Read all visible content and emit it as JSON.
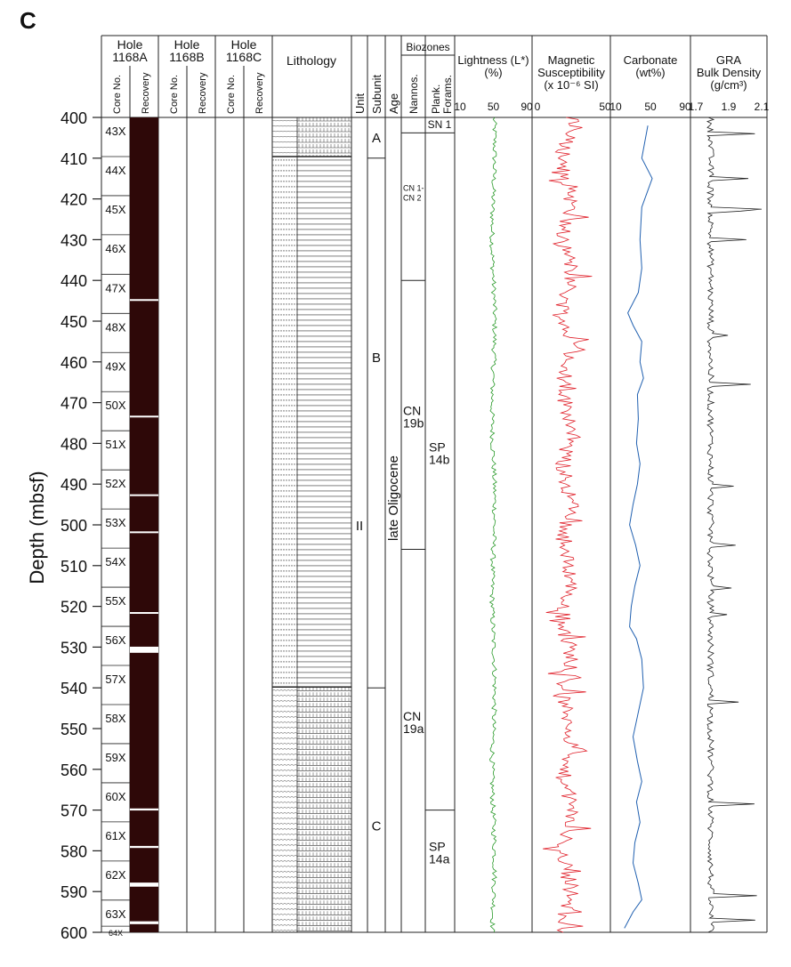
{
  "figure": {
    "panel_letter": "C"
  },
  "chart_data": {
    "type": "line",
    "title": "",
    "ylabel": "Depth (mbsf)",
    "ylim": [
      400,
      600
    ],
    "yticks": [
      "400",
      "410",
      "420",
      "430",
      "440",
      "450",
      "460",
      "470",
      "480",
      "490",
      "500",
      "510",
      "520",
      "530",
      "540",
      "550",
      "560",
      "570",
      "580",
      "590",
      "600"
    ],
    "holes": [
      {
        "name": "Hole 1168A",
        "line1": "Hole",
        "line2": "1168A"
      },
      {
        "name": "Hole 1168B",
        "line1": "Hole",
        "line2": "1168B"
      },
      {
        "name": "Hole 1168C",
        "line1": "Hole",
        "line2": "1168C"
      }
    ],
    "core_col_label": "Core No.",
    "recovery_col_label": "Recovery",
    "cores": [
      {
        "label": "43X",
        "top": 400.0,
        "bottom": 409.6
      },
      {
        "label": "44X",
        "top": 409.6,
        "bottom": 419.2
      },
      {
        "label": "45X",
        "top": 419.2,
        "bottom": 428.8
      },
      {
        "label": "46X",
        "top": 428.8,
        "bottom": 438.5
      },
      {
        "label": "47X",
        "top": 438.5,
        "bottom": 448.1
      },
      {
        "label": "48X",
        "top": 448.1,
        "bottom": 457.7
      },
      {
        "label": "49X",
        "top": 457.7,
        "bottom": 467.3
      },
      {
        "label": "50X",
        "top": 467.3,
        "bottom": 476.9
      },
      {
        "label": "51X",
        "top": 476.9,
        "bottom": 486.5
      },
      {
        "label": "52X",
        "top": 486.5,
        "bottom": 496.1
      },
      {
        "label": "53X",
        "top": 496.1,
        "bottom": 505.7
      },
      {
        "label": "54X",
        "top": 505.7,
        "bottom": 515.3
      },
      {
        "label": "55X",
        "top": 515.3,
        "bottom": 524.9
      },
      {
        "label": "56X",
        "top": 524.9,
        "bottom": 534.5
      },
      {
        "label": "57X",
        "top": 534.5,
        "bottom": 544.1
      },
      {
        "label": "58X",
        "top": 544.1,
        "bottom": 553.7
      },
      {
        "label": "59X",
        "top": 553.7,
        "bottom": 563.3
      },
      {
        "label": "60X",
        "top": 563.3,
        "bottom": 572.9
      },
      {
        "label": "61X",
        "top": 572.9,
        "bottom": 582.5
      },
      {
        "label": "62X",
        "top": 582.5,
        "bottom": 592.1
      },
      {
        "label": "63X",
        "top": 592.1,
        "bottom": 598.5
      },
      {
        "label": "64X",
        "top": 598.5,
        "bottom": 600.0
      }
    ],
    "recovery_gaps": [
      [
        444.6,
        444.9
      ],
      [
        473.2,
        473.6
      ],
      [
        492.5,
        492.8
      ],
      [
        501.6,
        502.0
      ],
      [
        521.4,
        521.8
      ],
      [
        529.9,
        531.4
      ],
      [
        569.6,
        570.1
      ],
      [
        578.8,
        579.3
      ],
      [
        587.8,
        588.8
      ],
      [
        597.3,
        598.0
      ]
    ],
    "lithology_label": "Lithology",
    "lithology_boundaries": [
      409.6,
      539.8
    ],
    "unit_label": "Unit",
    "subunit_label": "Subunit",
    "age_label": "Age",
    "units": [
      {
        "label": "II",
        "top": 400,
        "bottom": 600
      }
    ],
    "subunits": [
      {
        "label": "A",
        "top": 400,
        "bottom": 410
      },
      {
        "label": "B",
        "top": 410,
        "bottom": 540
      },
      {
        "label": "C",
        "top": 540,
        "bottom": 600
      }
    ],
    "age": {
      "label": "late Oligocene",
      "top": 400,
      "bottom": 600
    },
    "biozones_label": "Biozones",
    "nannos_label": "Nannos.",
    "forams_label1": "Plank.",
    "forams_label2": "Forams.",
    "nanno_zones": [
      {
        "line1": "CN 1-",
        "line2": "CN 2",
        "top": 403.8,
        "bottom": 440,
        "label_depth": 418
      },
      {
        "line1": "CN",
        "line2": "19b",
        "top": 440,
        "bottom": 506,
        "label_depth": 473
      },
      {
        "line1": "CN",
        "line2": "19a",
        "top": 506,
        "bottom": 600,
        "label_depth": 548
      }
    ],
    "foram_zones": [
      {
        "line1": "SN 1",
        "line2": "",
        "top": 400,
        "bottom": 403.8,
        "label_depth": 401.8
      },
      {
        "line1": "SP",
        "line2": "14b",
        "top": 403.8,
        "bottom": 570,
        "label_depth": 482
      },
      {
        "line1": "SP",
        "line2": "14a",
        "top": 570,
        "bottom": 600,
        "label_depth": 580
      }
    ],
    "tracks": [
      {
        "name": "Lightness",
        "title1": "Lightness (L*)",
        "title2": "(%)",
        "title3": "",
        "xticks": [
          "10",
          "50",
          "90"
        ],
        "xlim": [
          10,
          90
        ],
        "color": "#2a9a2a"
      },
      {
        "name": "Magnetic Susceptibility",
        "title1": "Magnetic",
        "title2": "Susceptibility",
        "title3": "(x 10⁻⁶ SI)",
        "xticks": [
          "0",
          "50"
        ],
        "xlim": [
          0,
          50
        ],
        "color": "#e0202a"
      },
      {
        "name": "Carbonate",
        "title1": "Carbonate",
        "title2": "(wt%)",
        "title3": "",
        "xticks": [
          "10",
          "50",
          "90"
        ],
        "xlim": [
          10,
          90
        ],
        "color": "#2060b0"
      },
      {
        "name": "GRA Bulk Density",
        "title1": "GRA",
        "title2": "Bulk Density",
        "title3": "(g/cm³)",
        "xticks": [
          "1.7",
          "1.9",
          "2.1"
        ],
        "xlim": [
          1.7,
          2.1
        ],
        "color": "#222222"
      }
    ],
    "carbonate_points": [
      {
        "depth": 402,
        "value": 47
      },
      {
        "depth": 410,
        "value": 40
      },
      {
        "depth": 415,
        "value": 52
      },
      {
        "depth": 422,
        "value": 40
      },
      {
        "depth": 430,
        "value": 38
      },
      {
        "depth": 437,
        "value": 40
      },
      {
        "depth": 443,
        "value": 36
      },
      {
        "depth": 448,
        "value": 24
      },
      {
        "depth": 451,
        "value": 30
      },
      {
        "depth": 455,
        "value": 40
      },
      {
        "depth": 460,
        "value": 38
      },
      {
        "depth": 464,
        "value": 42
      },
      {
        "depth": 468,
        "value": 35
      },
      {
        "depth": 474,
        "value": 36
      },
      {
        "depth": 480,
        "value": 34
      },
      {
        "depth": 485,
        "value": 38
      },
      {
        "depth": 490,
        "value": 35
      },
      {
        "depth": 495,
        "value": 30
      },
      {
        "depth": 500,
        "value": 26
      },
      {
        "depth": 505,
        "value": 33
      },
      {
        "depth": 510,
        "value": 38
      },
      {
        "depth": 515,
        "value": 32
      },
      {
        "depth": 520,
        "value": 28
      },
      {
        "depth": 525,
        "value": 26
      },
      {
        "depth": 528,
        "value": 34
      },
      {
        "depth": 533,
        "value": 40
      },
      {
        "depth": 540,
        "value": 42
      },
      {
        "depth": 547,
        "value": 35
      },
      {
        "depth": 552,
        "value": 30
      },
      {
        "depth": 558,
        "value": 35
      },
      {
        "depth": 563,
        "value": 40
      },
      {
        "depth": 568,
        "value": 34
      },
      {
        "depth": 573,
        "value": 38
      },
      {
        "depth": 578,
        "value": 32
      },
      {
        "depth": 583,
        "value": 30
      },
      {
        "depth": 588,
        "value": 36
      },
      {
        "depth": 592,
        "value": 40
      },
      {
        "depth": 595,
        "value": 30
      },
      {
        "depth": 599,
        "value": 20
      }
    ]
  }
}
